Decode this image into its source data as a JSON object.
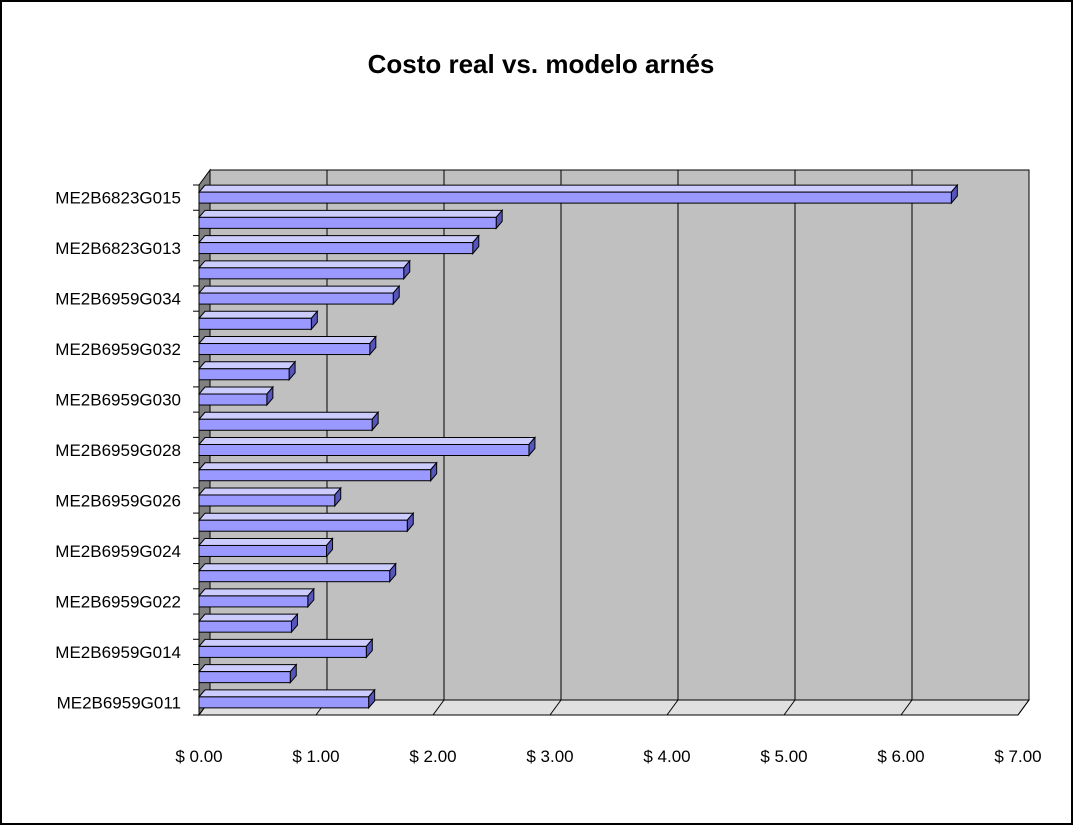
{
  "chart_data": {
    "type": "bar",
    "orientation": "horizontal",
    "style": "3d-clustered-bar",
    "title": "Costo real vs. modelo arnés",
    "xlabel": "",
    "ylabel": "",
    "xlim": [
      0,
      7
    ],
    "x_ticks": [
      0,
      1,
      2,
      3,
      4,
      5,
      6,
      7
    ],
    "x_tick_labels": [
      "$ 0.00",
      "$ 1.00",
      "$ 2.00",
      "$ 3.00",
      "$ 4.00",
      "$ 5.00",
      "$ 6.00",
      "$ 7.00"
    ],
    "grid": true,
    "legend": "none",
    "category_labels": [
      "ME2B6959G011",
      "ME2B6959G014",
      "ME2B6959G022",
      "ME2B6959G024",
      "ME2B6959G026",
      "ME2B6959G028",
      "ME2B6959G030",
      "ME2B6959G032",
      "ME2B6959G034",
      "ME2B6823G013",
      "ME2B6823G015"
    ],
    "values": [
      1.45,
      0.78,
      1.43,
      0.79,
      0.93,
      1.63,
      1.09,
      1.78,
      1.16,
      1.98,
      2.82,
      1.48,
      0.58,
      0.77,
      1.46,
      0.96,
      1.66,
      1.75,
      2.34,
      2.54,
      6.43
    ],
    "colors": {
      "bar_front": "#9999ff",
      "bar_top": "#ccccff",
      "bar_side": "#5555bb",
      "plot_wall": "#c0c0c0",
      "side_wall": "#808080",
      "floor": "#e0e0e0",
      "gridline": "#000000"
    }
  }
}
